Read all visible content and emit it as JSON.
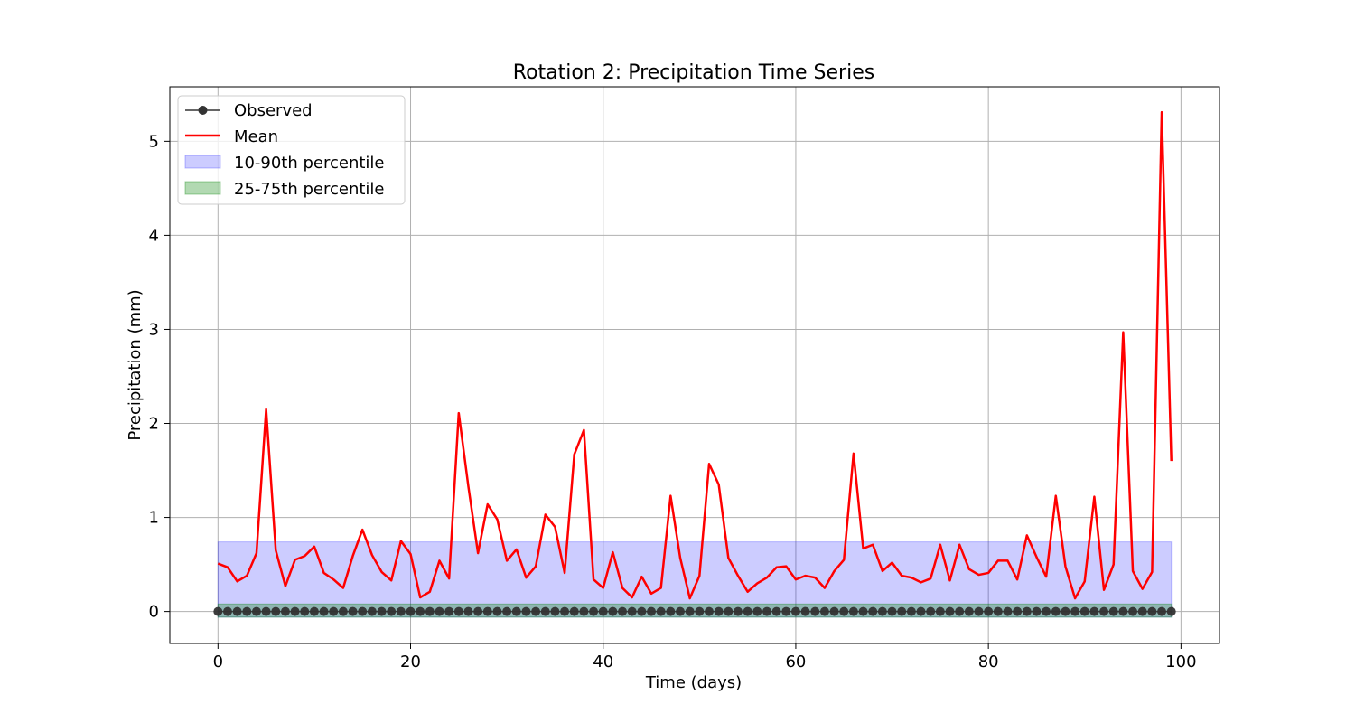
{
  "chart_data": {
    "type": "line",
    "title": "Rotation 2: Precipitation Time Series",
    "xlabel": "Time (days)",
    "ylabel": "Precipitation (mm)",
    "xlim": [
      -5,
      104
    ],
    "ylim": [
      -0.34,
      5.58
    ],
    "xticks": [
      0,
      20,
      40,
      60,
      80,
      100
    ],
    "yticks": [
      0,
      1,
      2,
      3,
      4,
      5
    ],
    "grid": true,
    "legend_position": "top-left",
    "legend": {
      "observed": "Observed",
      "mean": "Mean",
      "band_10_90": "10-90th percentile",
      "band_25_75": "25-75th percentile"
    },
    "colors": {
      "observed": "#333333",
      "mean": "#ff0000",
      "band_10_90": "#0000ff",
      "band_25_75": "#008000",
      "grid": "#b0b0b0"
    },
    "x": [
      0,
      1,
      2,
      3,
      4,
      5,
      6,
      7,
      8,
      9,
      10,
      11,
      12,
      13,
      14,
      15,
      16,
      17,
      18,
      19,
      20,
      21,
      22,
      23,
      24,
      25,
      26,
      27,
      28,
      29,
      30,
      31,
      32,
      33,
      34,
      35,
      36,
      37,
      38,
      39,
      40,
      41,
      42,
      43,
      44,
      45,
      46,
      47,
      48,
      49,
      50,
      51,
      52,
      53,
      54,
      55,
      56,
      57,
      58,
      59,
      60,
      61,
      62,
      63,
      64,
      65,
      66,
      67,
      68,
      69,
      70,
      71,
      72,
      73,
      74,
      75,
      76,
      77,
      78,
      79,
      80,
      81,
      82,
      83,
      84,
      85,
      86,
      87,
      88,
      89,
      90,
      91,
      92,
      93,
      94,
      95,
      96,
      97,
      98,
      99
    ],
    "series": [
      {
        "name": "Observed",
        "values": [
          0,
          0,
          0,
          0,
          0,
          0,
          0,
          0,
          0,
          0,
          0,
          0,
          0,
          0,
          0,
          0,
          0,
          0,
          0,
          0,
          0,
          0,
          0,
          0,
          0,
          0,
          0,
          0,
          0,
          0,
          0,
          0,
          0,
          0,
          0,
          0,
          0,
          0,
          0,
          0,
          0,
          0,
          0,
          0,
          0,
          0,
          0,
          0,
          0,
          0,
          0,
          0,
          0,
          0,
          0,
          0,
          0,
          0,
          0,
          0,
          0,
          0,
          0,
          0,
          0,
          0,
          0,
          0,
          0,
          0,
          0,
          0,
          0,
          0,
          0,
          0,
          0,
          0,
          0,
          0,
          0,
          0,
          0,
          0,
          0,
          0,
          0,
          0,
          0,
          0,
          0,
          0,
          0,
          0,
          0,
          0,
          0,
          0,
          0,
          0
        ]
      },
      {
        "name": "Mean",
        "values": [
          0.51,
          0.47,
          0.32,
          0.38,
          0.62,
          2.15,
          0.65,
          0.27,
          0.55,
          0.59,
          0.69,
          0.41,
          0.34,
          0.25,
          0.59,
          0.87,
          0.6,
          0.42,
          0.33,
          0.75,
          0.61,
          0.15,
          0.21,
          0.54,
          0.35,
          2.11,
          1.33,
          0.62,
          1.14,
          0.98,
          0.54,
          0.66,
          0.36,
          0.48,
          1.03,
          0.9,
          0.41,
          1.67,
          1.93,
          0.34,
          0.25,
          0.63,
          0.25,
          0.15,
          0.37,
          0.19,
          0.25,
          1.23,
          0.57,
          0.14,
          0.38,
          1.57,
          1.35,
          0.57,
          0.38,
          0.21,
          0.3,
          0.36,
          0.47,
          0.48,
          0.34,
          0.38,
          0.36,
          0.25,
          0.43,
          0.55,
          1.68,
          0.67,
          0.71,
          0.43,
          0.52,
          0.38,
          0.36,
          0.31,
          0.35,
          0.71,
          0.33,
          0.71,
          0.45,
          0.39,
          0.41,
          0.54,
          0.54,
          0.34,
          0.81,
          0.58,
          0.37,
          1.23,
          0.48,
          0.14,
          0.32,
          1.22,
          0.23,
          0.5,
          2.97,
          0.43,
          0.24,
          0.42,
          5.31,
          1.6
        ]
      }
    ],
    "bands": [
      {
        "name": "10-90th percentile",
        "lower": -0.06,
        "upper": 0.74
      },
      {
        "name": "25-75th percentile",
        "lower": -0.06,
        "upper": 0.08
      }
    ]
  }
}
